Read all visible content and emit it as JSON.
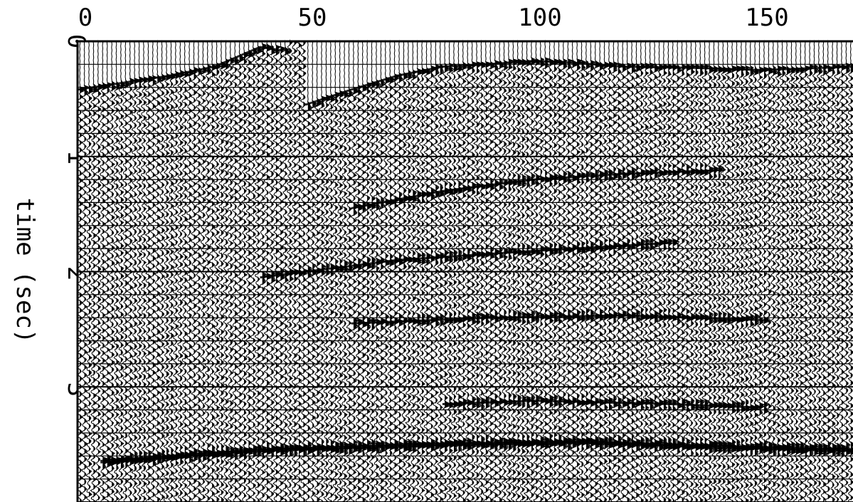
{
  "chart_data": {
    "type": "heatmap",
    "subtype": "seismic wiggle-trace section (variable area)",
    "xlabel": "",
    "ylabel": "time (sec)",
    "xlim": [
      0,
      170
    ],
    "ylim": [
      0,
      4.0
    ],
    "y_inverted": true,
    "x_ticks": [
      "0",
      "50",
      "100",
      "150"
    ],
    "x_tick_values": [
      0,
      50,
      100,
      150
    ],
    "y_ticks": [
      "0",
      "1",
      "2",
      "3"
    ],
    "y_tick_values": [
      0,
      1,
      2,
      3
    ],
    "trace_count": 170,
    "horizontal_grid_interval_sec": 0.2,
    "grid": true,
    "events": [
      {
        "name": "first-break-left",
        "points": [
          [
            0,
            0.42
          ],
          [
            10,
            0.36
          ],
          [
            20,
            0.3
          ],
          [
            30,
            0.22
          ],
          [
            40,
            0.05
          ],
          [
            45,
            0.08
          ]
        ]
      },
      {
        "name": "first-break-right",
        "points": [
          [
            50,
            0.55
          ],
          [
            60,
            0.42
          ],
          [
            70,
            0.3
          ],
          [
            80,
            0.22
          ],
          [
            90,
            0.2
          ],
          [
            100,
            0.17
          ],
          [
            110,
            0.19
          ],
          [
            120,
            0.22
          ],
          [
            135,
            0.23
          ],
          [
            150,
            0.25
          ],
          [
            170,
            0.22
          ]
        ]
      },
      {
        "name": "reflector-1",
        "points": [
          [
            60,
            1.45
          ],
          [
            80,
            1.3
          ],
          [
            100,
            1.2
          ],
          [
            120,
            1.15
          ],
          [
            140,
            1.12
          ]
        ]
      },
      {
        "name": "reflector-2",
        "points": [
          [
            40,
            2.05
          ],
          [
            70,
            1.9
          ],
          [
            100,
            1.82
          ],
          [
            130,
            1.75
          ]
        ]
      },
      {
        "name": "reflector-3",
        "points": [
          [
            60,
            2.45
          ],
          [
            90,
            2.4
          ],
          [
            120,
            2.38
          ],
          [
            150,
            2.42
          ]
        ]
      },
      {
        "name": "reflector-4",
        "points": [
          [
            80,
            3.15
          ],
          [
            100,
            3.12
          ],
          [
            130,
            3.15
          ],
          [
            150,
            3.18
          ]
        ]
      },
      {
        "name": "reflector-5-strong",
        "points": [
          [
            5,
            3.65
          ],
          [
            40,
            3.55
          ],
          [
            80,
            3.5
          ],
          [
            110,
            3.48
          ],
          [
            140,
            3.52
          ],
          [
            170,
            3.55
          ]
        ]
      }
    ],
    "colors": {
      "trace": "#000000",
      "background": "#ffffff"
    }
  }
}
